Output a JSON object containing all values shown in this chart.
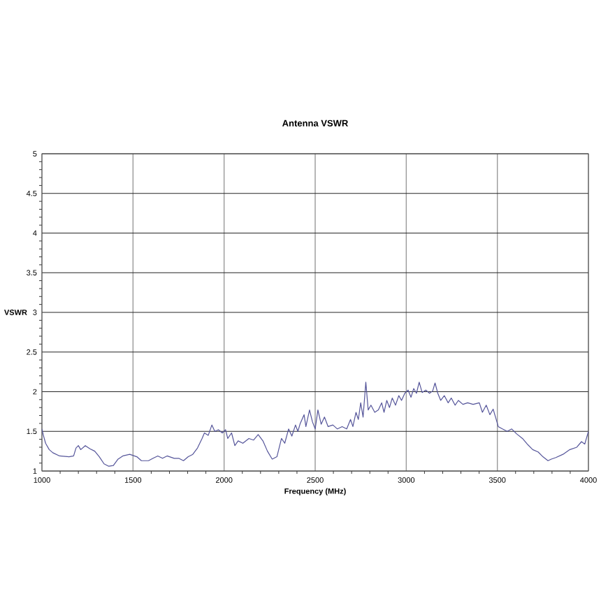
{
  "chart_data": {
    "type": "line",
    "title": "Antenna VSWR",
    "xlabel": "Frequency (MHz)",
    "ylabel": "VSWR",
    "x": [
      1000,
      1008,
      1020,
      1040,
      1060,
      1097,
      1149,
      1174,
      1187,
      1200,
      1213,
      1238,
      1264,
      1290,
      1315,
      1341,
      1367,
      1392,
      1418,
      1444,
      1482,
      1521,
      1546,
      1585,
      1610,
      1636,
      1662,
      1687,
      1726,
      1751,
      1777,
      1803,
      1828,
      1854,
      1879,
      1892,
      1913,
      1933,
      1949,
      1969,
      1990,
      2008,
      2020,
      2041,
      2059,
      2077,
      2103,
      2136,
      2162,
      2187,
      2213,
      2238,
      2264,
      2290,
      2315,
      2333,
      2354,
      2372,
      2392,
      2405,
      2418,
      2439,
      2449,
      2469,
      2485,
      2500,
      2515,
      2533,
      2551,
      2571,
      2597,
      2622,
      2648,
      2673,
      2694,
      2707,
      2724,
      2737,
      2750,
      2763,
      2778,
      2791,
      2806,
      2827,
      2847,
      2865,
      2878,
      2893,
      2908,
      2923,
      2941,
      2959,
      2974,
      2992,
      3010,
      3026,
      3041,
      3056,
      3071,
      3087,
      3107,
      3128,
      3145,
      3158,
      3173,
      3189,
      3209,
      3230,
      3247,
      3268,
      3286,
      3311,
      3337,
      3367,
      3401,
      3418,
      3439,
      3459,
      3477,
      3490,
      3505,
      3528,
      3554,
      3579,
      3605,
      3638,
      3668,
      3694,
      3724,
      3750,
      3778,
      3796,
      3821,
      3860,
      3898,
      3936,
      3962,
      3980,
      4000
    ],
    "series": [
      {
        "color": "#55559a",
        "values": [
          1.53,
          1.45,
          1.35,
          1.27,
          1.23,
          1.19,
          1.18,
          1.19,
          1.29,
          1.32,
          1.27,
          1.32,
          1.28,
          1.25,
          1.18,
          1.09,
          1.06,
          1.07,
          1.15,
          1.19,
          1.21,
          1.18,
          1.13,
          1.13,
          1.16,
          1.19,
          1.16,
          1.19,
          1.16,
          1.16,
          1.13,
          1.18,
          1.21,
          1.29,
          1.41,
          1.48,
          1.45,
          1.58,
          1.5,
          1.52,
          1.48,
          1.52,
          1.41,
          1.48,
          1.32,
          1.38,
          1.35,
          1.41,
          1.39,
          1.46,
          1.38,
          1.25,
          1.15,
          1.18,
          1.41,
          1.35,
          1.53,
          1.44,
          1.58,
          1.5,
          1.6,
          1.71,
          1.56,
          1.77,
          1.62,
          1.53,
          1.77,
          1.59,
          1.68,
          1.56,
          1.58,
          1.53,
          1.56,
          1.53,
          1.65,
          1.56,
          1.74,
          1.65,
          1.86,
          1.68,
          2.12,
          1.77,
          1.83,
          1.74,
          1.77,
          1.86,
          1.74,
          1.89,
          1.8,
          1.92,
          1.83,
          1.95,
          1.89,
          1.98,
          2.02,
          1.93,
          2.04,
          1.98,
          2.12,
          1.99,
          2.02,
          1.98,
          2.01,
          2.11,
          1.98,
          1.89,
          1.95,
          1.86,
          1.92,
          1.83,
          1.89,
          1.84,
          1.86,
          1.84,
          1.86,
          1.74,
          1.83,
          1.71,
          1.78,
          1.68,
          1.56,
          1.53,
          1.5,
          1.53,
          1.47,
          1.41,
          1.33,
          1.27,
          1.24,
          1.18,
          1.13,
          1.15,
          1.17,
          1.21,
          1.27,
          1.3,
          1.37,
          1.34,
          1.5
        ]
      }
    ],
    "xlim": [
      1000,
      4000
    ],
    "ylim": [
      1,
      5
    ],
    "xticks": [
      1000,
      1500,
      2000,
      2500,
      3000,
      3500,
      4000
    ],
    "yticks": [
      1,
      1.5,
      2,
      2.5,
      3,
      3.5,
      4,
      4.5,
      5
    ],
    "grid": true,
    "line_style": "solid"
  }
}
